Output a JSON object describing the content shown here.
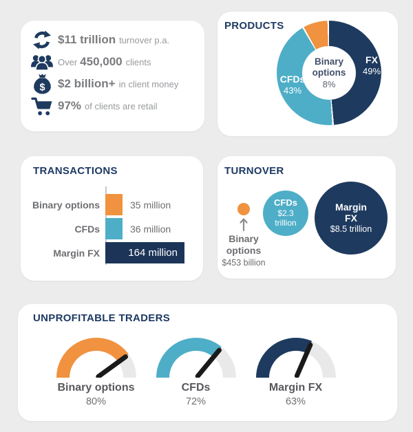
{
  "colors": {
    "background": "#ececec",
    "panel": "#ffffff",
    "navy": "#1e3a5f",
    "teal": "#4eaec7",
    "orange": "#f0923f",
    "track_gray": "#e9e9ea",
    "title_navy": "#1e3a64",
    "text_dark_gray": "#6d6e71",
    "text_light_gray": "#97999c",
    "needle_black": "#1a1a1a"
  },
  "stats": {
    "items": [
      {
        "icon": "refresh-icon",
        "prefix": "",
        "value": "$11 trillion",
        "desc": "turnover p.a."
      },
      {
        "icon": "clients-icon",
        "prefix": "Over",
        "value": "450,000",
        "desc": "clients"
      },
      {
        "icon": "money-bag-icon",
        "prefix": "",
        "value": "$2 billion+",
        "desc": "in client money"
      },
      {
        "icon": "cart-icon",
        "prefix": "",
        "value": "97%",
        "desc": "of clients are retail"
      }
    ]
  },
  "chart_data": [
    {
      "id": "products",
      "type": "pie",
      "donut": true,
      "title": "PRODUCTS",
      "labels": [
        "FX",
        "CFDs",
        "Binary options"
      ],
      "values": [
        49,
        43,
        8
      ],
      "unit": "%",
      "colors": [
        "#1e3a5f",
        "#4eaec7",
        "#f0923f"
      ],
      "start_angle": "top, clockwise",
      "center_label": {
        "name": "Binary options",
        "value": "8%"
      },
      "slice_labels": [
        {
          "name": "FX",
          "pct": "49%"
        },
        {
          "name": "CFDs",
          "pct": "43%"
        }
      ]
    },
    {
      "id": "transactions",
      "type": "bar",
      "orientation": "horizontal",
      "title": "TRANSACTIONS",
      "categories": [
        "Binary options",
        "CFDs",
        "Margin FX"
      ],
      "values": [
        35,
        36,
        164
      ],
      "unit": "million",
      "value_labels": [
        "35 million",
        "36 million",
        "164 million"
      ],
      "colors": [
        "#f0923f",
        "#4eaec7",
        "#1c3458"
      ],
      "xlim": [
        0,
        164
      ]
    },
    {
      "id": "turnover",
      "type": "scatter",
      "subtype": "bubble",
      "title": "TURNOVER",
      "bubbles": [
        {
          "name": "Binary options",
          "value_label": "$453 billion",
          "value_trillions": 0.453,
          "color": "#f0923f",
          "radius_px": 9,
          "label_position": "below-with-arrow"
        },
        {
          "name": "CFDs",
          "value_label": "$2.3 trillion",
          "value_trillions": 2.3,
          "color": "#4eaec7",
          "radius_px": 33,
          "label_position": "inside"
        },
        {
          "name": "Margin FX",
          "value_label": "$8.5 trillion",
          "value_trillions": 8.5,
          "color": "#1e3a5f",
          "radius_px": 53,
          "label_position": "inside"
        }
      ]
    },
    {
      "id": "unprofitable",
      "type": "gauge",
      "title": "UNPROFITABLE TRADERS",
      "range": [
        0,
        100
      ],
      "track_color": "#e9e9ea",
      "needle_color": "#1a1a1a",
      "gauges": [
        {
          "label": "Binary options",
          "pct": 80,
          "pct_label": "80%",
          "color": "#f0923f"
        },
        {
          "label": "CFDs",
          "pct": 72,
          "pct_label": "72%",
          "color": "#4eaec7"
        },
        {
          "label": "Margin FX",
          "pct": 63,
          "pct_label": "63%",
          "color": "#1e3a5f"
        }
      ]
    }
  ]
}
